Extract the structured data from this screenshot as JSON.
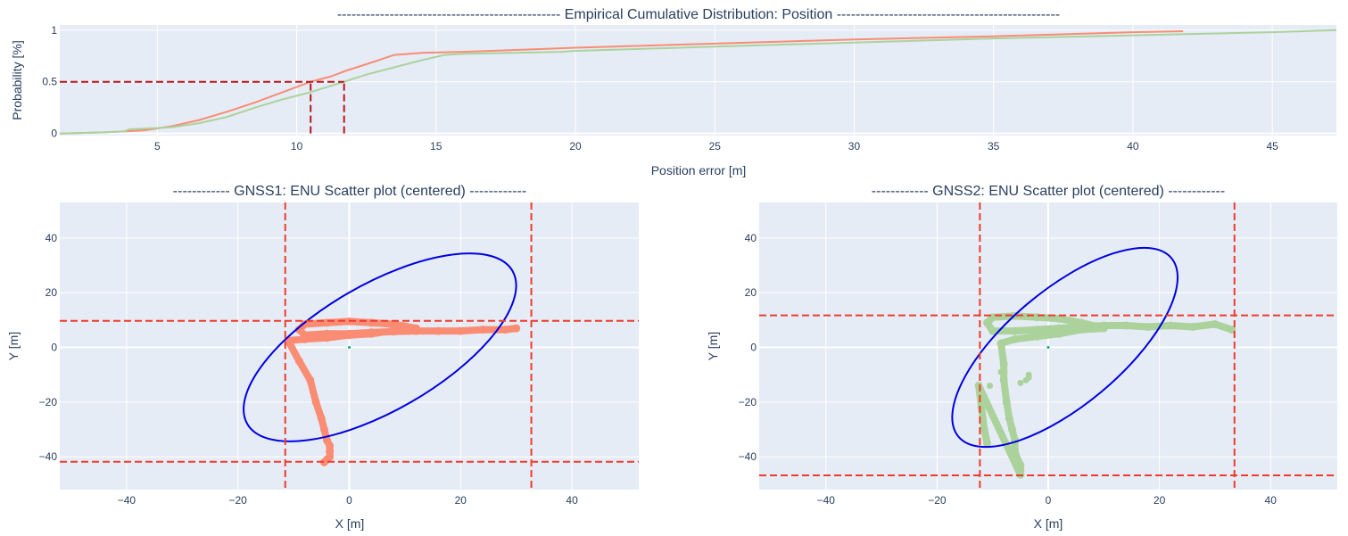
{
  "chart_data": [
    {
      "type": "line",
      "title": "-----------------------------------------------  Empirical Cumulative Distribution: Position  -----------------------------------------------",
      "xlabel": "Position error [m]",
      "ylabel": "Probability [%]",
      "xlim": [
        1.5,
        47.3
      ],
      "ylim": [
        -0.02,
        1.05
      ],
      "xticks": [
        "5",
        "10",
        "15",
        "20",
        "25",
        "30",
        "35",
        "40",
        "45"
      ],
      "yticks": [
        "0",
        "0.5",
        "1"
      ],
      "grid": true,
      "series": [
        {
          "color": "#fa8c74",
          "x": [
            1.5,
            3,
            4.5,
            5.5,
            6.5,
            7.5,
            8.5,
            9.5,
            10.5,
            11.2,
            11.8,
            12.5,
            13.5,
            14.5,
            16,
            20,
            25,
            30,
            35,
            40,
            41.8
          ],
          "y": [
            0,
            0.01,
            0.03,
            0.07,
            0.13,
            0.21,
            0.3,
            0.4,
            0.5,
            0.55,
            0.61,
            0.67,
            0.76,
            0.78,
            0.79,
            0.83,
            0.87,
            0.91,
            0.94,
            0.98,
            0.99
          ]
        },
        {
          "color": "#acd29c",
          "x": [
            1.5,
            3,
            3.8,
            4,
            5.5,
            6.5,
            7.5,
            8.5,
            9.5,
            10.5,
            11.7,
            12.5,
            13.5,
            14.5,
            15.3,
            16,
            19.5,
            20,
            25,
            30,
            35,
            40,
            45,
            47.3
          ],
          "y": [
            0,
            0.01,
            0.02,
            0.04,
            0.06,
            0.1,
            0.16,
            0.25,
            0.33,
            0.4,
            0.5,
            0.57,
            0.64,
            0.71,
            0.76,
            0.77,
            0.79,
            0.8,
            0.84,
            0.88,
            0.92,
            0.95,
            0.98,
            1.0
          ]
        }
      ],
      "markers": [
        {
          "color": "#b8161b",
          "x": 10.5,
          "y": 0.5
        },
        {
          "color": "#b8161b",
          "x": 11.7,
          "y": 0.5
        }
      ]
    },
    {
      "type": "scatter",
      "title": "------------ GNSS1: ENU Scatter plot (centered) ------------",
      "xlabel": "X [m]",
      "ylabel": "Y [m]",
      "xlim": [
        -52,
        52
      ],
      "ylim": [
        -52,
        53
      ],
      "xticks": [
        "−40",
        "−20",
        "0",
        "20",
        "40"
      ],
      "yticks": [
        "−40",
        "−20",
        "0",
        "20",
        "40"
      ],
      "grid": true,
      "point_color": "#fa8c74",
      "ellipse": {
        "color": "#0000e0",
        "cx": 5.5,
        "cy": 0,
        "rx": 27.5,
        "ry": 23,
        "angle_deg": 30
      },
      "vlines": [
        -11.5,
        32.7
      ],
      "hlines": [
        9.7,
        -41.8
      ],
      "line_color": "#ef3b2c",
      "track": {
        "x": [
          30,
          28,
          24,
          20,
          16,
          12,
          8,
          4,
          0,
          -4,
          -8,
          -9,
          -8,
          -4,
          0,
          4,
          8,
          12,
          8,
          4,
          0,
          -4,
          -8,
          -11,
          -9,
          -7,
          -6,
          -5,
          -4.5,
          -4,
          -3.5,
          -3.5,
          -3.5,
          -4,
          -4.5
        ],
        "y": [
          7,
          6.5,
          6.5,
          6,
          6,
          6,
          5.8,
          5.5,
          5,
          5,
          4.5,
          6.5,
          8.5,
          9,
          9.5,
          9,
          8.5,
          7,
          6,
          5,
          4.5,
          3.5,
          3,
          2.5,
          -5,
          -12,
          -20,
          -26,
          -30,
          -34,
          -36,
          -38,
          -40,
          -41,
          -42
        ]
      }
    },
    {
      "type": "scatter",
      "title": "------------ GNSS2: ENU Scatter plot (centered) ------------",
      "xlabel": "X [m]",
      "ylabel": "Y [m]",
      "xlim": [
        -52,
        52
      ],
      "ylim": [
        -52,
        53
      ],
      "xticks": [
        "−40",
        "−20",
        "0",
        "20",
        "40"
      ],
      "yticks": [
        "−40",
        "−20",
        "0",
        "20",
        "40"
      ],
      "grid": true,
      "point_color": "#acd29c",
      "ellipse": {
        "color": "#0000e0",
        "cx": 3,
        "cy": 0,
        "rx": 25,
        "ry": 21,
        "angle_deg": 40
      },
      "vlines": [
        -12.3,
        33.5
      ],
      "hlines": [
        11.7,
        -46.8
      ],
      "line_color": "#ef3b2c",
      "track": {
        "x": [
          33,
          30,
          26,
          22,
          18,
          14,
          10,
          6,
          2,
          -2,
          -6,
          -10,
          -11,
          -10,
          -6,
          -2,
          2,
          6,
          10,
          6,
          2,
          -2,
          -6,
          -8.5,
          -8,
          -8,
          -7.5,
          -7,
          -6.5,
          -6,
          -6,
          -5.5,
          -5,
          -5,
          -5,
          -12.5,
          -12,
          -11.5,
          -11
        ],
        "y": [
          6.5,
          8.5,
          7.5,
          8,
          7.5,
          8,
          8,
          7.5,
          7,
          6.5,
          6,
          6,
          9,
          11,
          11.5,
          11,
          10.5,
          9,
          7,
          6.5,
          5,
          4,
          3,
          1.5,
          -6,
          -12,
          -20,
          -26,
          -30,
          -34,
          -38,
          -41,
          -43,
          -45,
          -46.5,
          -14,
          -22,
          -30,
          -35
        ]
      },
      "extra_points": {
        "x": [
          -10.5,
          -8.5,
          -5,
          -4,
          -3.5,
          -3.5
        ],
        "y": [
          -14,
          -9,
          -13,
          -12,
          -11,
          -10
        ]
      }
    }
  ]
}
